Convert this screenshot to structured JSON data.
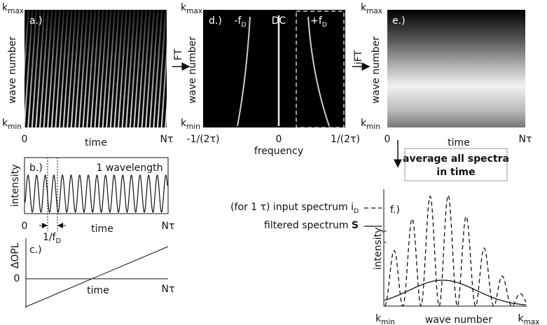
{
  "panels": {
    "a": {
      "label": "a.)",
      "y_top": {
        "main": "k",
        "sub": "max"
      },
      "y_bottom": {
        "main": "k",
        "sub": "min"
      },
      "y_axis": "wave number",
      "x_start": "0",
      "x_axis": "time",
      "x_end": "Nτ"
    },
    "ft_arrow": "FT",
    "d": {
      "label": "d.)",
      "y_top": {
        "main": "k",
        "sub": "max"
      },
      "y_bottom": {
        "main": "k",
        "sub": "min"
      },
      "y_axis": "wave number",
      "peaks": [
        {
          "main": "-f",
          "sub": "D"
        },
        {
          "main": "DC"
        },
        {
          "main": "+f",
          "sub": "D"
        }
      ],
      "x_ticks": [
        "-1/(2τ)",
        "0",
        "1/(2τ)"
      ],
      "x_axis": "frequency"
    },
    "ift_arrow": "iFT",
    "e": {
      "label": "e.)",
      "y_top": {
        "main": "k",
        "sub": "max"
      },
      "y_bottom": {
        "main": "k",
        "sub": "min"
      },
      "y_axis": "wave number",
      "x_start": "0",
      "x_axis": "time",
      "x_end": "Nτ"
    },
    "average_box": [
      "average all spectra",
      "in time"
    ],
    "b": {
      "label": "b.)",
      "annotation": "1 wavelength",
      "y_axis": "intensity",
      "x_start": "0",
      "x_axis": "time",
      "x_end": "Nτ",
      "period": {
        "main": "1/f",
        "sub": "D"
      }
    },
    "c": {
      "label": "c.)",
      "y_axis": "ΔOPL",
      "y_zero": "0",
      "x_axis": "time",
      "x_end": "Nτ"
    },
    "f": {
      "label": "f.)",
      "legend": [
        {
          "main": "(for 1 τ) input spectrum i",
          "sub": "D"
        },
        {
          "main": "filtered spectrum ",
          "bold": "S"
        }
      ],
      "y_axis": "intensity",
      "x_start": {
        "main": "k",
        "sub": "min"
      },
      "x_axis": "wave number",
      "x_end": {
        "main": "k",
        "sub": "max"
      }
    }
  }
}
